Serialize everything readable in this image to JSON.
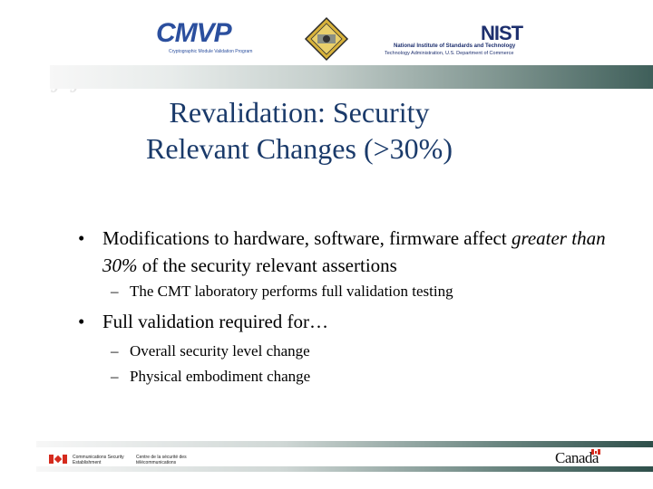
{
  "header": {
    "cmvp_logo": "CMVP",
    "cmvp_tagline": "Cryptographic Module Validation Program",
    "nist_logo": "NIST",
    "nist_line1": "National Institute of Standards and Technology",
    "nist_line2": "Technology Administration, U.S. Department of Commerce",
    "seal_icon": "government-seal-icon"
  },
  "slide": {
    "title_line1": "Revalidation: Security",
    "title_line2": "Relevant Changes (>30%)",
    "bullets": [
      {
        "marker": "•",
        "text_before": "Modifications to hardware, software, firmware affect ",
        "text_emphasis": "greater than 30%",
        "text_after": " of the security relevant assertions",
        "subs": [
          "The CMT laboratory performs full validation testing"
        ]
      },
      {
        "marker": "•",
        "text": "Full validation required for…",
        "subs": [
          "Overall security level change",
          "Physical embodiment change"
        ]
      }
    ],
    "sub_marker": "–"
  },
  "footer": {
    "cse_en": "Communications Security Establishment",
    "cse_fr": "Centre de la sécurité des télécommunications",
    "canada_wordmark": "Canada",
    "colors": {
      "flag_red": "#d52b1e",
      "title_blue": "#1a3a6a"
    }
  }
}
